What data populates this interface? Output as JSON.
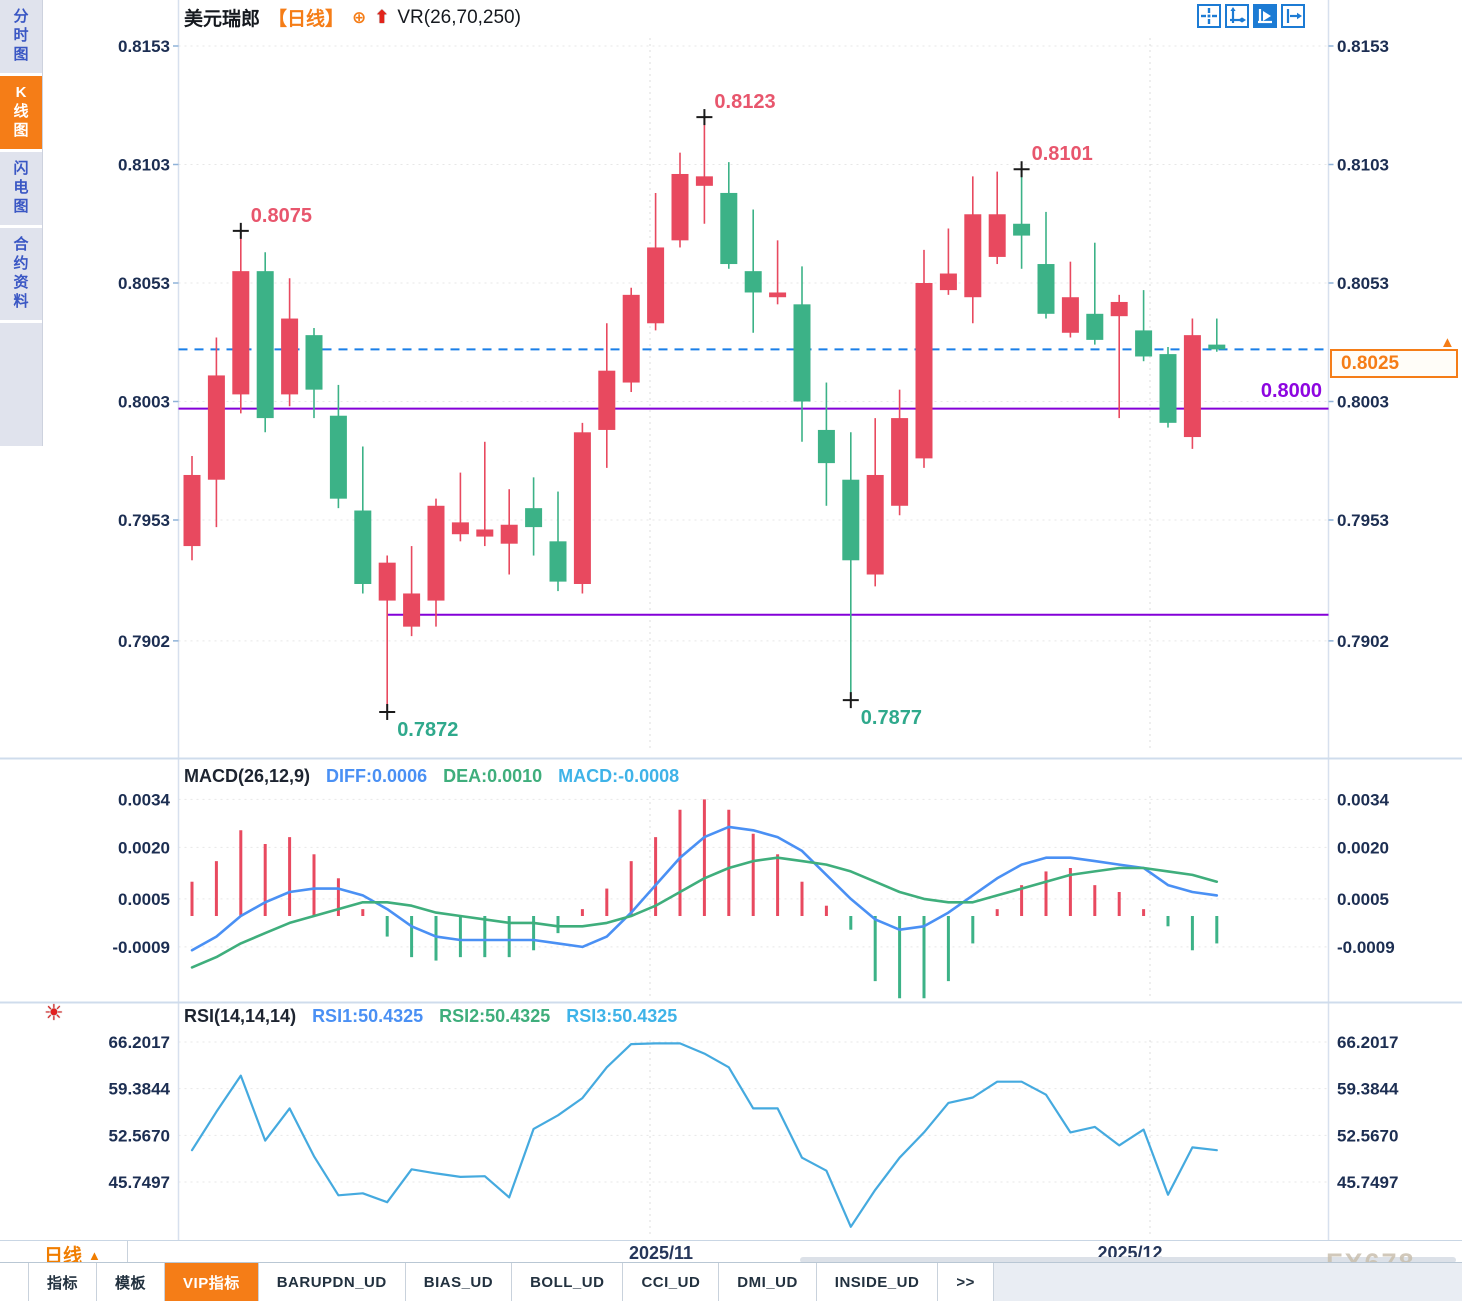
{
  "header": {
    "symbol": "美元瑞郎",
    "period_tag": "【日线】",
    "plus_icon": "⊕",
    "up_arrow_icon": "⬆",
    "indicator_label": "VR(26,70,250)"
  },
  "sidebar": {
    "items": [
      {
        "label": "分时图",
        "active": false
      },
      {
        "label": "K线图",
        "active": true
      },
      {
        "label": "闪电图",
        "active": false
      },
      {
        "label": "合约资料",
        "active": false
      }
    ],
    "active_color": "#f57d17"
  },
  "toolbar": {
    "icons": [
      "crosshair-icon",
      "axis-scale-icon",
      "pointer-chart-icon",
      "exit-right-icon"
    ],
    "active_index": 2
  },
  "chart_data": [
    {
      "type": "candlestick",
      "title": "美元瑞郎 日线",
      "up_color": "#e8495f",
      "down_color": "#3cb287",
      "y_ticks": [
        "0.8153",
        "0.8103",
        "0.8053",
        "0.8003",
        "0.7953",
        "0.7902"
      ],
      "y_tick_values": [
        0.8153,
        0.8103,
        0.8053,
        0.8003,
        0.7953,
        0.7902
      ],
      "candles": [
        [
          0.7942,
          0.798,
          0.7936,
          0.7972
        ],
        [
          0.797,
          0.803,
          0.795,
          0.8014
        ],
        [
          0.8006,
          0.8075,
          0.7998,
          0.8058
        ],
        [
          0.8058,
          0.8066,
          0.799,
          0.7996
        ],
        [
          0.8006,
          0.8055,
          0.8001,
          0.8038
        ],
        [
          0.8031,
          0.8034,
          0.7996,
          0.8008
        ],
        [
          0.7997,
          0.801,
          0.7958,
          0.7962
        ],
        [
          0.7957,
          0.7984,
          0.7922,
          0.7926
        ],
        [
          0.7919,
          0.7938,
          0.7872,
          0.7935
        ],
        [
          0.7908,
          0.7942,
          0.7904,
          0.7922
        ],
        [
          0.7919,
          0.7962,
          0.7908,
          0.7959
        ],
        [
          0.7947,
          0.7973,
          0.7944,
          0.7952
        ],
        [
          0.7946,
          0.7986,
          0.7942,
          0.7949
        ],
        [
          0.7943,
          0.7966,
          0.793,
          0.7951
        ],
        [
          0.7958,
          0.7971,
          0.7938,
          0.795
        ],
        [
          0.7944,
          0.7965,
          0.7923,
          0.7927
        ],
        [
          0.7926,
          0.7994,
          0.7922,
          0.799
        ],
        [
          0.7991,
          0.8036,
          0.7975,
          0.8016
        ],
        [
          0.8011,
          0.8051,
          0.8007,
          0.8048
        ],
        [
          0.8036,
          0.8091,
          0.8033,
          0.8068
        ],
        [
          0.8071,
          0.8108,
          0.8068,
          0.8099
        ],
        [
          0.8094,
          0.8123,
          0.8078,
          0.8098
        ],
        [
          0.8091,
          0.8104,
          0.8059,
          0.8061
        ],
        [
          0.8058,
          0.8084,
          0.8032,
          0.8049
        ],
        [
          0.8047,
          0.8071,
          0.8044,
          0.8049
        ],
        [
          0.8044,
          0.806,
          0.7986,
          0.8003
        ],
        [
          0.7991,
          0.8011,
          0.7959,
          0.7977
        ],
        [
          0.797,
          0.799,
          0.7877,
          0.7936
        ],
        [
          0.793,
          0.7996,
          0.7925,
          0.7972
        ],
        [
          0.7959,
          0.8008,
          0.7955,
          0.7996
        ],
        [
          0.7979,
          0.8067,
          0.7975,
          0.8053
        ],
        [
          0.805,
          0.8076,
          0.8048,
          0.8057
        ],
        [
          0.8047,
          0.8098,
          0.8036,
          0.8082
        ],
        [
          0.8064,
          0.81,
          0.8061,
          0.8082
        ],
        [
          0.8078,
          0.8101,
          0.8059,
          0.8073
        ],
        [
          0.8061,
          0.8083,
          0.8038,
          0.804
        ],
        [
          0.8032,
          0.8062,
          0.803,
          0.8047
        ],
        [
          0.804,
          0.807,
          0.8027,
          0.8029
        ],
        [
          0.8039,
          0.8048,
          0.7996,
          0.8045
        ],
        [
          0.8033,
          0.805,
          0.802,
          0.8022
        ],
        [
          0.8023,
          0.8026,
          0.7992,
          0.7994
        ],
        [
          0.7988,
          0.8038,
          0.7983,
          0.8031
        ],
        [
          0.8027,
          0.8038,
          0.8024,
          0.8025
        ]
      ],
      "annotations": [
        {
          "index": 2,
          "type": "high",
          "label": "0.8075",
          "color": "#e8566d"
        },
        {
          "index": 21,
          "type": "high",
          "label": "0.8123",
          "color": "#e8566d"
        },
        {
          "index": 34,
          "type": "high",
          "label": "0.8101",
          "color": "#e8566d"
        },
        {
          "index": 8,
          "type": "low",
          "label": "0.7872",
          "color": "#2fa98c"
        },
        {
          "index": 27,
          "type": "low",
          "label": "0.7877",
          "color": "#2fa98c"
        }
      ],
      "hlines": [
        {
          "price": 0.8,
          "color": "#8400d8",
          "style": "solid",
          "from_index": 0
        },
        {
          "price": 0.7913,
          "color": "#8400d8",
          "style": "solid",
          "from_index": 8
        },
        {
          "price": 0.8025,
          "color": "#1a7fe8",
          "style": "dashed",
          "from_index": 0
        }
      ],
      "current_price": "0.8025",
      "x_gridlines": [
        "2025/11",
        "2025/12"
      ]
    },
    {
      "type": "macd",
      "params_label": "MACD(26,12,9)",
      "legend": [
        {
          "label": "DIFF:0.0006",
          "color": "#4a90f4"
        },
        {
          "label": "DEA:0.0010",
          "color": "#3fae7c"
        },
        {
          "label": "MACD:-0.0008",
          "color": "#3fb3e8"
        }
      ],
      "y_ticks": [
        "0.0034",
        "0.0020",
        "0.0005",
        "-0.0009"
      ],
      "y_tick_values": [
        0.0034,
        0.002,
        0.0005,
        -0.0009
      ],
      "histogram": [
        0.001,
        0.0016,
        0.0025,
        0.0021,
        0.0023,
        0.0018,
        0.0011,
        0.0002,
        -0.0006,
        -0.0012,
        -0.0013,
        -0.0012,
        -0.0012,
        -0.0012,
        -0.001,
        -0.0005,
        0.0002,
        0.0008,
        0.0016,
        0.0023,
        0.0031,
        0.0034,
        0.0031,
        0.0024,
        0.0018,
        0.001,
        0.0003,
        -0.0004,
        -0.0019,
        -0.0024,
        -0.0024,
        -0.0019,
        -0.0008,
        0.0002,
        0.0009,
        0.0013,
        0.0014,
        0.0009,
        0.0007,
        0.0002,
        -0.0003,
        -0.001,
        -0.0008
      ],
      "diff": [
        -0.001,
        -0.0006,
        0.0,
        0.0004,
        0.0007,
        0.0008,
        0.0008,
        0.0006,
        0.0002,
        -0.0003,
        -0.0006,
        -0.0007,
        -0.0007,
        -0.0007,
        -0.0007,
        -0.0008,
        -0.0009,
        -0.0006,
        0.0001,
        0.0009,
        0.0017,
        0.0023,
        0.0026,
        0.0025,
        0.0023,
        0.0019,
        0.0012,
        0.0005,
        -0.0001,
        -0.0004,
        -0.0003,
        0.0001,
        0.0006,
        0.0011,
        0.0015,
        0.0017,
        0.0017,
        0.0016,
        0.0015,
        0.0014,
        0.0009,
        0.0007,
        0.0006
      ],
      "dea": [
        -0.0015,
        -0.0012,
        -0.0008,
        -0.0005,
        -0.0002,
        0.0,
        0.0002,
        0.0004,
        0.0004,
        0.0003,
        0.0001,
        0.0,
        -0.0001,
        -0.0002,
        -0.0002,
        -0.0003,
        -0.0003,
        -0.0002,
        0.0,
        0.0003,
        0.0007,
        0.0011,
        0.0014,
        0.0016,
        0.0017,
        0.0016,
        0.0015,
        0.0013,
        0.001,
        0.0007,
        0.0005,
        0.0004,
        0.0004,
        0.0006,
        0.0008,
        0.001,
        0.0012,
        0.0013,
        0.0014,
        0.0014,
        0.0013,
        0.0012,
        0.001
      ],
      "hist_up_color": "#e8495f",
      "hist_down_color": "#3cb287",
      "diff_color": "#4a90f4",
      "dea_color": "#3fae7c"
    },
    {
      "type": "line",
      "params_label": "RSI(14,14,14)",
      "legend": [
        {
          "label": "RSI1:50.4325",
          "color": "#4a90f4"
        },
        {
          "label": "RSI2:50.4325",
          "color": "#3fae7c"
        },
        {
          "label": "RSI3:50.4325",
          "color": "#3fb3e8"
        }
      ],
      "y_ticks": [
        "66.2017",
        "59.3844",
        "52.5670",
        "45.7497"
      ],
      "y_tick_values": [
        66.2017,
        59.3844,
        52.567,
        45.7497
      ],
      "series": [
        {
          "name": "RSI1",
          "values": [
            50.4,
            56.0,
            61.3,
            51.8,
            56.5,
            49.5,
            43.8,
            44.1,
            42.8,
            47.6,
            47.0,
            46.5,
            46.6,
            43.5,
            53.5,
            55.5,
            58.0,
            62.5,
            65.9,
            66.0,
            66.0,
            64.5,
            62.5,
            56.5,
            56.5,
            49.3,
            47.4,
            39.2,
            44.6,
            49.3,
            53.0,
            57.3,
            58.1,
            60.4,
            60.4,
            58.5,
            53.0,
            53.8,
            51.1,
            53.4,
            43.9,
            50.8,
            50.4
          ]
        }
      ],
      "line_color": "#45aadf"
    }
  ],
  "price_tag": {
    "text": "0.8025",
    "arrow": "▲",
    "color": "#f57d17"
  },
  "level_label": {
    "text": "0.8000",
    "color": "#8d06e0"
  },
  "x_axis": {
    "ticks": [
      {
        "label": "2025/11",
        "x": 661
      },
      {
        "label": "2025/12",
        "x": 1130
      }
    ]
  },
  "period_button": {
    "label": "日线",
    "arrow": "▲"
  },
  "tabs": [
    {
      "label": "指标",
      "active": false
    },
    {
      "label": "模板",
      "active": false
    },
    {
      "label": "VIP指标",
      "active": true
    },
    {
      "label": "BARUPDN_UD",
      "active": false
    },
    {
      "label": "BIAS_UD",
      "active": false
    },
    {
      "label": "BOLL_UD",
      "active": false
    },
    {
      "label": "CCI_UD",
      "active": false
    },
    {
      "label": "DMI_UD",
      "active": false
    },
    {
      "label": "INSIDE_UD",
      "active": false
    },
    {
      "label": ">>",
      "active": false
    }
  ],
  "watermark": "FX678"
}
